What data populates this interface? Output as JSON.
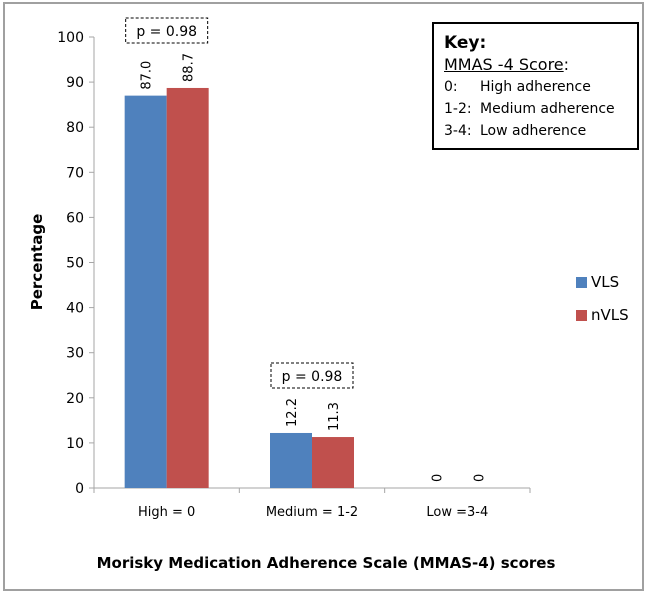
{
  "chart_data": {
    "type": "bar",
    "title": "",
    "xlabel": "Morisky Medication Adherence Scale (MMAS-4) scores",
    "ylabel": "Percentage",
    "ylim": [
      0,
      100
    ],
    "yticks": [
      0,
      10,
      20,
      30,
      40,
      50,
      60,
      70,
      80,
      90,
      100
    ],
    "categories": [
      "High = 0",
      "Medium = 1-2",
      "Low =3-4"
    ],
    "series": [
      {
        "name": "VLS",
        "color": "#4f81bd",
        "values": [
          87.0,
          12.2,
          0
        ],
        "labels": [
          "87.0",
          "12.2",
          "0"
        ]
      },
      {
        "name": "nVLS",
        "color": "#c0504d",
        "values": [
          88.7,
          11.3,
          0
        ],
        "labels": [
          "88.7",
          "11.3",
          "0"
        ]
      }
    ],
    "legend": {
      "position": "right",
      "items": [
        "VLS",
        "nVLS"
      ]
    },
    "annotations": [
      {
        "text": "p = 0.98",
        "category": "High = 0"
      },
      {
        "text": "p = 0.98",
        "category": "Medium = 1-2"
      }
    ],
    "grid": false
  },
  "key": {
    "title": "Key:",
    "subtitle": "MMAS -4 Score",
    "subtitle_suffix": ":",
    "rows": [
      {
        "code": "0:",
        "label": "High adherence"
      },
      {
        "code": "1-2:",
        "label": "Medium adherence"
      },
      {
        "code": "3-4:",
        "label": "Low adherence"
      }
    ]
  }
}
